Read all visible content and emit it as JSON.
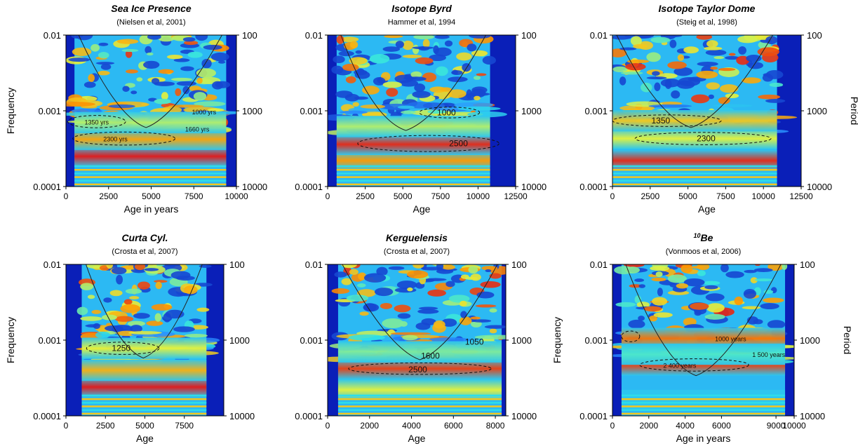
{
  "colors": {
    "low": "#0a1fb8",
    "mid_low": "#2a8cff",
    "mid": "#2ee6e6",
    "mid_high": "#e7f23a",
    "high": "#ff9a00",
    "max": "#e0001a",
    "cone_line": "#222222"
  },
  "chart_data": [
    {
      "type": "heatmap",
      "title": "Sea Ice Presence",
      "subtitle": "(Nielsen et al, 2001)",
      "xlabel": "Age in years",
      "ylabel_left": "Frequency",
      "ylabel_right": "",
      "xlim": [
        0,
        10000
      ],
      "data_x_range": [
        500,
        9400
      ],
      "ylim": [
        0.0001,
        0.01
      ],
      "y_scale": "log",
      "x_ticks": [
        "0",
        "2500",
        "5000",
        "7500",
        "10000"
      ],
      "y_ticks_left": [
        "0.01",
        "0.001",
        "0.0001"
      ],
      "y_ticks_right": [
        "100",
        "1000",
        "10000"
      ],
      "cone_bottom": [
        4700,
        0.0006
      ],
      "bands": [
        {
          "center": 0.00025,
          "power": 0.97
        },
        {
          "center": 0.00042,
          "power": 0.78
        },
        {
          "center": 0.0007,
          "power": 0.55
        }
      ],
      "annotations": [
        {
          "text": "1350 yrs",
          "x": 1800,
          "y": 0.00072
        },
        {
          "text": "2300 yrs",
          "x": 2900,
          "y": 0.00043
        },
        {
          "text": "1000 yrs",
          "x": 8100,
          "y": 0.00098
        },
        {
          "text": "1660 yrs",
          "x": 7700,
          "y": 0.00058
        }
      ],
      "ellipses": [
        {
          "cx": 1800,
          "cy": 0.00072,
          "rx": 1700,
          "ry_decades": 0.035
        },
        {
          "cx": 3400,
          "cy": 0.00043,
          "rx": 3000,
          "ry_decades": 0.04
        }
      ]
    },
    {
      "type": "heatmap",
      "title": "Isotope Byrd",
      "subtitle": "Hammer et al, 1994",
      "xlabel": "Age",
      "ylabel_left": "",
      "ylabel_right": "",
      "xlim": [
        0,
        12500
      ],
      "data_x_range": [
        600,
        10800
      ],
      "ylim": [
        0.0001,
        0.01
      ],
      "y_scale": "log",
      "x_ticks": [
        "0",
        "2500",
        "5000",
        "7500",
        "10000",
        "12500"
      ],
      "y_ticks_left": [
        "0.01",
        "0.001",
        "0.0001"
      ],
      "y_ticks_right": [
        "100",
        "1000",
        "10000"
      ],
      "cone_bottom": [
        5200,
        0.00055
      ],
      "bands": [
        {
          "center": 0.00022,
          "power": 0.8
        },
        {
          "center": 0.00036,
          "power": 0.95
        },
        {
          "center": 0.00062,
          "power": 0.55
        }
      ],
      "annotations": [
        {
          "text": "1000",
          "x": 7900,
          "y": 0.00095
        },
        {
          "text": "2500",
          "x": 8700,
          "y": 0.00037
        }
      ],
      "ellipses": [
        {
          "cx": 8100,
          "cy": 0.00095,
          "rx": 2000,
          "ry_decades": 0.025
        },
        {
          "cx": 6700,
          "cy": 0.00037,
          "rx": 4700,
          "ry_decades": 0.06
        }
      ]
    },
    {
      "type": "heatmap",
      "title": "Isotope Taylor Dome",
      "subtitle": "(Steig et al, 1998)",
      "xlabel": "Age",
      "ylabel_left": "",
      "ylabel_right": "Period",
      "xlim": [
        0,
        12500
      ],
      "data_x_range": [
        0,
        10900
      ],
      "ylim": [
        0.0001,
        0.01
      ],
      "y_scale": "log",
      "x_ticks": [
        "0",
        "2500",
        "5000",
        "7500",
        "10000",
        "12500"
      ],
      "y_ticks_left": [
        "0.01",
        "0.001",
        "0.0001"
      ],
      "y_ticks_right": [
        "100",
        "1000",
        "10000"
      ],
      "cone_bottom": [
        5200,
        0.0006
      ],
      "bands": [
        {
          "center": 0.00022,
          "power": 0.95
        },
        {
          "center": 0.00043,
          "power": 0.6
        },
        {
          "center": 0.00074,
          "power": 0.7
        }
      ],
      "annotations": [
        {
          "text": "1350",
          "x": 3200,
          "y": 0.00074
        },
        {
          "text": "2300",
          "x": 6200,
          "y": 0.00043
        }
      ],
      "ellipses": [
        {
          "cx": 3600,
          "cy": 0.00074,
          "rx": 3600,
          "ry_decades": 0.03
        },
        {
          "cx": 6000,
          "cy": 0.00043,
          "rx": 4500,
          "ry_decades": 0.035
        }
      ]
    },
    {
      "type": "heatmap",
      "title": "Curta Cyl.",
      "subtitle": "(Crosta et al, 2007)",
      "xlabel": "Age",
      "ylabel_left": "Frequency",
      "ylabel_right": "",
      "xlim": [
        0,
        10000
      ],
      "data_x_range": [
        1000,
        8900
      ],
      "ylim": [
        0.0001,
        0.01
      ],
      "y_scale": "log",
      "x_ticks": [
        "0",
        "2500",
        "5000",
        "7500"
      ],
      "y_ticks_left": [
        "0.01",
        "0.001",
        "0.0001"
      ],
      "y_ticks_right": [
        "100",
        "1000",
        "10000"
      ],
      "cone_bottom": [
        4900,
        0.00058
      ],
      "bands": [
        {
          "center": 0.00024,
          "power": 0.97
        },
        {
          "center": 0.0004,
          "power": 0.75
        },
        {
          "center": 0.00078,
          "power": 0.6
        }
      ],
      "annotations": [
        {
          "text": "1250",
          "x": 3500,
          "y": 0.00078
        }
      ],
      "ellipses": [
        {
          "cx": 3600,
          "cy": 0.00078,
          "rx": 2300,
          "ry_decades": 0.035
        }
      ]
    },
    {
      "type": "heatmap",
      "title": "Kerguelensis",
      "subtitle": "(Crosta et al, 2007)",
      "xlabel": "Age",
      "ylabel_left": "",
      "ylabel_right": "",
      "xlim": [
        0,
        8500
      ],
      "data_x_range": [
        500,
        8300
      ],
      "ylim": [
        0.0001,
        0.01
      ],
      "y_scale": "log",
      "x_ticks": [
        "0",
        "2000",
        "4000",
        "6000",
        "8000"
      ],
      "y_ticks_left": [
        "0.01",
        "0.001",
        "0.0001"
      ],
      "y_ticks_right": [
        "100",
        "1000",
        "10000"
      ],
      "cone_bottom": [
        4400,
        0.00055
      ],
      "bands": [
        {
          "center": 0.00022,
          "power": 0.6
        },
        {
          "center": 0.00042,
          "power": 0.92
        },
        {
          "center": 0.0007,
          "power": 0.5
        }
      ],
      "annotations": [
        {
          "text": "1050",
          "x": 7000,
          "y": 0.00095
        },
        {
          "text": "1600",
          "x": 4900,
          "y": 0.00062
        },
        {
          "text": "2500",
          "x": 4300,
          "y": 0.00041
        }
      ],
      "ellipses": [
        {
          "cx": 4400,
          "cy": 0.00042,
          "rx": 3400,
          "ry_decades": 0.03
        }
      ]
    },
    {
      "type": "heatmap",
      "title": "10Be",
      "title_super": "10",
      "title_main": "Be",
      "subtitle": "(Vonmoos et al, 2006)",
      "xlabel": "Age in years",
      "ylabel_left": "Frequency",
      "ylabel_right": "Period",
      "xlim": [
        0,
        10000
      ],
      "data_x_range": [
        500,
        9500
      ],
      "ylim": [
        0.0001,
        0.01
      ],
      "y_scale": "log",
      "x_ticks": [
        "0",
        "2000",
        "4000",
        "6000",
        "9000",
        "10000"
      ],
      "y_ticks_left": [
        "0.01",
        "0.001",
        "0.0001"
      ],
      "y_ticks_right": [
        "100",
        "1000",
        "10000"
      ],
      "cone_bottom": [
        4600,
        0.00034
      ],
      "bands": [
        {
          "center": 0.00016,
          "power": 0.35
        },
        {
          "center": 0.00047,
          "power": 0.92
        },
        {
          "center": 0.00105,
          "power": 0.85
        },
        {
          "center": 0.00065,
          "power": 0.45
        }
      ],
      "annotations": [
        {
          "text": "1000 years",
          "x": 6500,
          "y": 0.00105
        },
        {
          "text": "1 500 years",
          "x": 8600,
          "y": 0.00065
        },
        {
          "text": "2 400 years",
          "x": 3700,
          "y": 0.00047
        }
      ],
      "ellipses": [
        {
          "cx": 4500,
          "cy": 0.00047,
          "rx": 3000,
          "ry_decades": 0.035
        },
        {
          "cx": 1000,
          "cy": 0.00112,
          "rx": 500,
          "ry_decades": 0.025
        }
      ]
    }
  ]
}
